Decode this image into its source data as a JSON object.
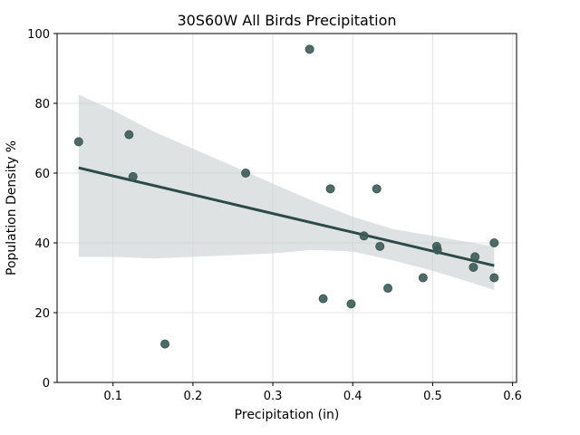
{
  "chart_data": {
    "type": "scatter",
    "title": "30S60W All Birds Precipitation",
    "xlabel": "Precipitation (in)",
    "ylabel": "Population Density %",
    "xlim": [
      0.03,
      0.605
    ],
    "ylim": [
      0,
      100
    ],
    "xticks": [
      0.1,
      0.2,
      0.3,
      0.4,
      0.5,
      0.6
    ],
    "xtick_labels": [
      "0.1",
      "0.2",
      "0.3",
      "0.4",
      "0.5",
      "0.6"
    ],
    "yticks": [
      0,
      20,
      40,
      60,
      80,
      100
    ],
    "ytick_labels": [
      "0",
      "20",
      "40",
      "60",
      "80",
      "100"
    ],
    "grid": true,
    "legend": "none",
    "colors": {
      "points": "#3d5a56",
      "line": "#2c4a48",
      "band": "#c8cfcf",
      "grid": "#e3e3e3"
    },
    "points": [
      {
        "x": 0.057,
        "y": 69
      },
      {
        "x": 0.12,
        "y": 71
      },
      {
        "x": 0.125,
        "y": 59
      },
      {
        "x": 0.165,
        "y": 11
      },
      {
        "x": 0.266,
        "y": 60
      },
      {
        "x": 0.346,
        "y": 95.5
      },
      {
        "x": 0.363,
        "y": 24
      },
      {
        "x": 0.372,
        "y": 55.5
      },
      {
        "x": 0.398,
        "y": 22.5
      },
      {
        "x": 0.414,
        "y": 42
      },
      {
        "x": 0.43,
        "y": 55.5
      },
      {
        "x": 0.434,
        "y": 39
      },
      {
        "x": 0.444,
        "y": 27
      },
      {
        "x": 0.488,
        "y": 30
      },
      {
        "x": 0.505,
        "y": 39
      },
      {
        "x": 0.506,
        "y": 38
      },
      {
        "x": 0.551,
        "y": 33
      },
      {
        "x": 0.553,
        "y": 36
      },
      {
        "x": 0.577,
        "y": 40
      },
      {
        "x": 0.577,
        "y": 30
      }
    ],
    "regression": {
      "x": [
        0.057,
        0.577
      ],
      "y": [
        61.5,
        33.5
      ]
    },
    "confidence_band": {
      "x": [
        0.057,
        0.1,
        0.15,
        0.2,
        0.25,
        0.3,
        0.35,
        0.4,
        0.45,
        0.5,
        0.55,
        0.577
      ],
      "upper": [
        82.5,
        78,
        72,
        67,
        62,
        57,
        52,
        47.5,
        44,
        42,
        40,
        39
      ],
      "lower": [
        36,
        36,
        35.5,
        36,
        36.5,
        37,
        38,
        37.5,
        35,
        32,
        28.5,
        26.5
      ]
    }
  }
}
